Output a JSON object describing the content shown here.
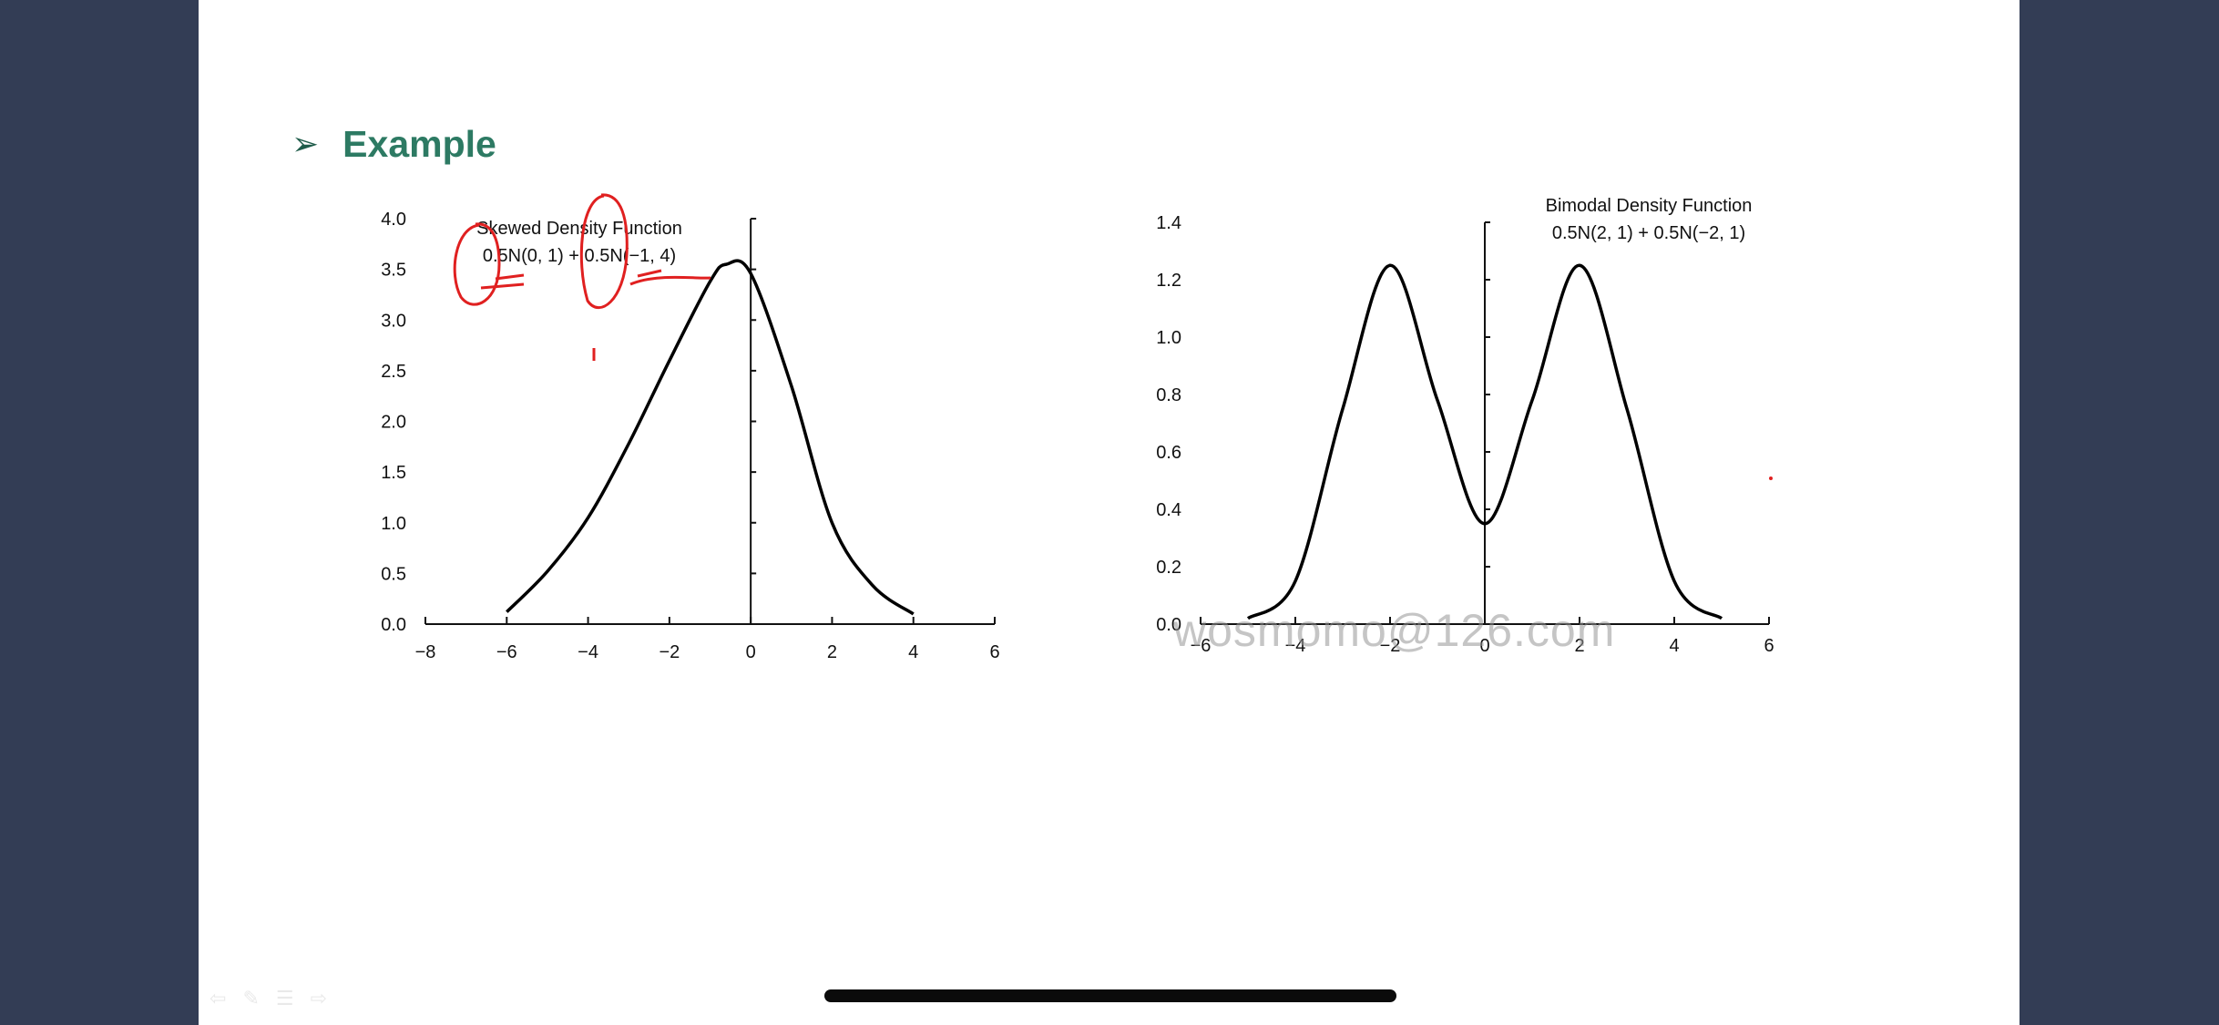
{
  "slide": {
    "heading_bullet": "➢",
    "heading": "Example",
    "watermark": "wosmomo@126.com"
  },
  "colors": {
    "frame": "#333d55",
    "heading": "#2d7a63",
    "annotation": "#e02020",
    "curve": "#000000"
  },
  "nav_icons": [
    "back-arrow-icon",
    "pen-icon",
    "menu-icon",
    "forward-arrow-icon"
  ],
  "chart_data": [
    {
      "type": "line",
      "title": "Skewed Density Function",
      "subtitle": "0.5N(0, 1) + 0.5N(−1, 4)",
      "xlabel": "",
      "ylabel": "",
      "xlim": [
        -8,
        6
      ],
      "ylim": [
        0,
        4
      ],
      "x_ticks": [
        -8,
        -6,
        -4,
        -2,
        0,
        2,
        4,
        6
      ],
      "x_tick_labels": [
        "−8",
        "−6",
        "−4",
        "−2",
        "0",
        "2",
        "4",
        "6"
      ],
      "y_ticks": [
        0,
        0.5,
        1,
        1.5,
        2,
        2.5,
        3,
        3.5,
        4
      ],
      "y_tick_labels": [
        "0.0",
        "0.5",
        "1.0",
        "1.5",
        "2.0",
        "2.5",
        "3.0",
        "3.5",
        "4.0"
      ],
      "series": [
        {
          "x": [
            -6,
            -5,
            -4,
            -3,
            -2,
            -1,
            -0.6,
            0,
            1,
            2,
            3,
            4
          ],
          "y": [
            0.12,
            0.52,
            1.05,
            1.78,
            2.6,
            3.38,
            3.55,
            3.46,
            2.35,
            1.0,
            0.38,
            0.1
          ]
        }
      ],
      "grid": false,
      "annotations": "red handwritten circles around 0.5 coefficients"
    },
    {
      "type": "line",
      "title": "Bimodal Density Function",
      "subtitle": "0.5N(2, 1) + 0.5N(−2, 1)",
      "xlabel": "",
      "ylabel": "",
      "xlim": [
        -6,
        6
      ],
      "ylim": [
        0,
        1.4
      ],
      "x_ticks": [
        -6,
        -4,
        -2,
        0,
        2,
        4,
        6
      ],
      "x_tick_labels": [
        "−6",
        "−4",
        "−2",
        "0",
        "2",
        "4",
        "6"
      ],
      "y_ticks": [
        0,
        0.2,
        0.4,
        0.6,
        0.8,
        1.0,
        1.2,
        1.4
      ],
      "y_tick_labels": [
        "0.0",
        "0.2",
        "0.4",
        "0.6",
        "0.8",
        "1.0",
        "1.2",
        "1.4"
      ],
      "series": [
        {
          "x": [
            -5,
            -4,
            -3,
            -2,
            -1,
            0,
            1,
            2,
            3,
            4,
            5
          ],
          "y": [
            0.02,
            0.15,
            0.75,
            1.25,
            0.78,
            0.35,
            0.78,
            1.25,
            0.75,
            0.15,
            0.02
          ]
        }
      ],
      "grid": false
    }
  ]
}
